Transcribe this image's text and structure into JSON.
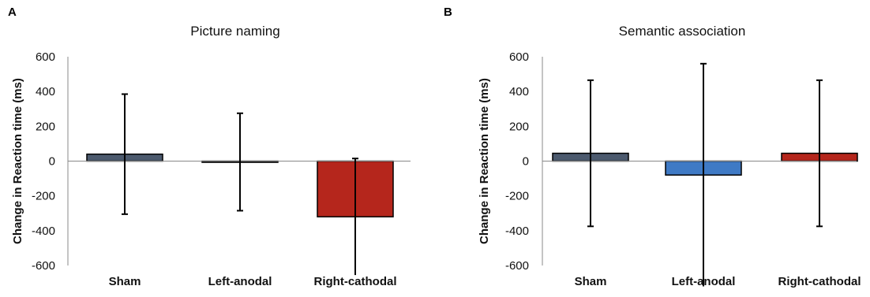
{
  "chart_data": [
    {
      "type": "bar",
      "panel": "A",
      "title": "Picture naming",
      "ylabel": "Change in Reaction time (ms)",
      "xlabel": "",
      "ylim": [
        -600,
        600
      ],
      "yticks": [
        600,
        400,
        200,
        0,
        -200,
        -400,
        -600
      ],
      "categories": [
        "Sham",
        "Left-anodal",
        "Right-cathodal"
      ],
      "values": [
        40,
        -5,
        -320
      ],
      "error": [
        345,
        280,
        335
      ],
      "colors": [
        "#4c5a6e",
        "#3f7ac5",
        "#b5261c"
      ]
    },
    {
      "type": "bar",
      "panel": "B",
      "title": "Semantic association",
      "ylabel": "Change in Reaction time (ms)",
      "xlabel": "",
      "ylim": [
        -600,
        600
      ],
      "yticks": [
        600,
        400,
        200,
        0,
        -200,
        -400,
        -600
      ],
      "categories": [
        "Sham",
        "Left-anodal",
        "Right-cathodal"
      ],
      "values": [
        45,
        -80,
        45
      ],
      "error": [
        420,
        640,
        420
      ],
      "colors": [
        "#4c5a6e",
        "#3f7ac5",
        "#b5261c"
      ]
    }
  ]
}
